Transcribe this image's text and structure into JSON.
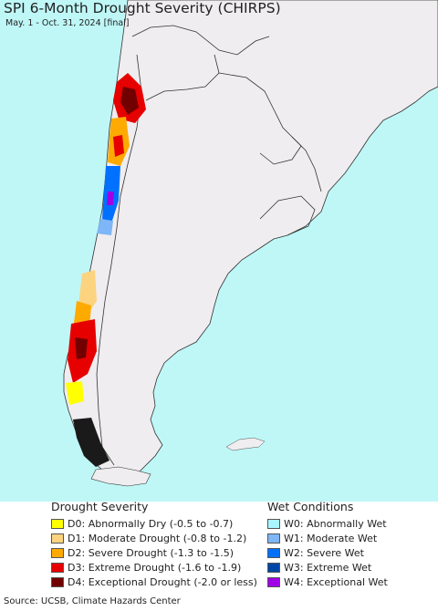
{
  "title": "SPI 6-Month Drought Severity (CHIRPS)",
  "subtitle": "May. 1 - Oct. 31, 2024 [final]",
  "colors": {
    "ocean": "#bff7f7",
    "land": "#efedef",
    "border": "#333333"
  },
  "legend": {
    "drought": {
      "title": "Drought Severity",
      "items": [
        {
          "code": "D0:",
          "label": "Abnormally Dry (-0.5 to -0.7)",
          "color": "#ffff00"
        },
        {
          "code": "D1:",
          "label": "Moderate Drought (-0.8 to -1.2)",
          "color": "#fcd37f"
        },
        {
          "code": "D2:",
          "label": "Severe Drought (-1.3 to -1.5)",
          "color": "#ffaa00"
        },
        {
          "code": "D3:",
          "label": "Extreme Drought (-1.6 to -1.9)",
          "color": "#e60000"
        },
        {
          "code": "D4:",
          "label": "Exceptional Drought (-2.0 or less)",
          "color": "#730000"
        }
      ]
    },
    "wet": {
      "title": "Wet Conditions",
      "items": [
        {
          "code": "W0:",
          "label": "Abnormally Wet",
          "color": "#aaf5ff"
        },
        {
          "code": "W1:",
          "label": "Moderate Wet",
          "color": "#7eb6f7"
        },
        {
          "code": "W2:",
          "label": "Severe Wet",
          "color": "#0070ff"
        },
        {
          "code": "W3:",
          "label": "Extreme Wet",
          "color": "#0046a5"
        },
        {
          "code": "W4:",
          "label": "Exceptional Wet",
          "color": "#a000e6"
        }
      ]
    }
  },
  "source": "Source: UCSB, Climate Hazards Center"
}
